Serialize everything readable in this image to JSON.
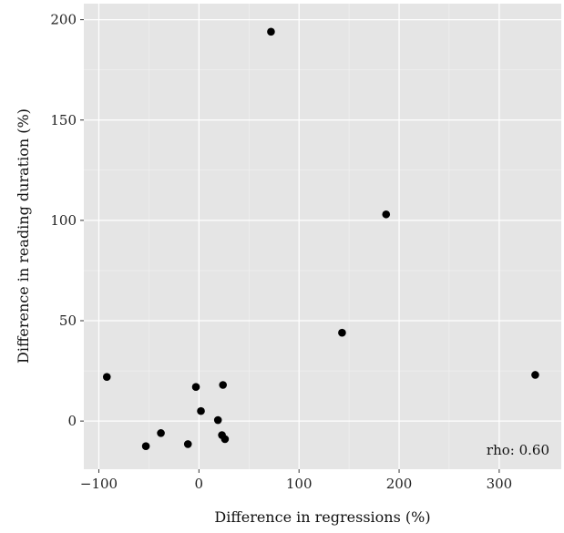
{
  "chart_data": {
    "type": "scatter",
    "title": "",
    "xlabel": "Difference in regressions (%)",
    "ylabel": "Difference in reading duration (%)",
    "xlim": [
      -115,
      362
    ],
    "ylim": [
      -24,
      208
    ],
    "x_ticks": [
      -100,
      0,
      100,
      200,
      300
    ],
    "y_ticks": [
      0,
      50,
      100,
      150,
      200
    ],
    "x_tick_labels": [
      "−100",
      "0",
      "100",
      "200",
      "300"
    ],
    "y_tick_labels": [
      "0",
      "50",
      "100",
      "150",
      "200"
    ],
    "grid": true,
    "panel_background": "#e5e5e5",
    "grid_color": "#ffffff",
    "point_color": "#000000",
    "annotation": "rho: 0.60",
    "points": [
      {
        "x": 72,
        "y": 194
      },
      {
        "x": 187,
        "y": 103
      },
      {
        "x": 143,
        "y": 44
      },
      {
        "x": 336,
        "y": 23
      },
      {
        "x": -92,
        "y": 22
      },
      {
        "x": 24,
        "y": 18
      },
      {
        "x": -3,
        "y": 17
      },
      {
        "x": 2,
        "y": 5
      },
      {
        "x": -38,
        "y": -6
      },
      {
        "x": 19,
        "y": 0.5
      },
      {
        "x": 23,
        "y": -7
      },
      {
        "x": 26,
        "y": -9
      },
      {
        "x": -53,
        "y": -12.5
      },
      {
        "x": -11,
        "y": -11.5
      }
    ]
  }
}
